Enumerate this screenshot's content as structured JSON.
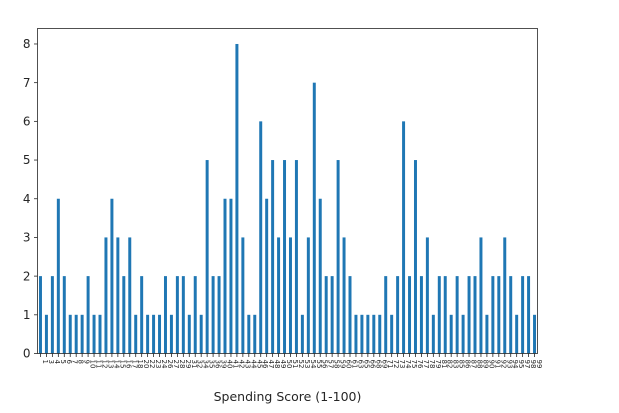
{
  "chart_data": {
    "type": "bar",
    "xlabel": "Spending Score (1-100)",
    "ylabel": "",
    "title": "",
    "ylim": [
      0,
      8.4
    ],
    "yticks": [
      0,
      1,
      2,
      3,
      4,
      5,
      6,
      7,
      8
    ],
    "bar_color": "#1f77b4",
    "grid": false,
    "categories": [
      "1",
      "3",
      "4",
      "5",
      "6",
      "7",
      "8",
      "9",
      "10",
      "11",
      "12",
      "13",
      "14",
      "15",
      "16",
      "17",
      "18",
      "20",
      "22",
      "23",
      "24",
      "26",
      "27",
      "28",
      "29",
      "31",
      "32",
      "34",
      "35",
      "36",
      "39",
      "40",
      "41",
      "42",
      "43",
      "44",
      "45",
      "46",
      "47",
      "48",
      "49",
      "50",
      "51",
      "52",
      "53",
      "54",
      "55",
      "56",
      "57",
      "58",
      "59",
      "60",
      "61",
      "63",
      "65",
      "66",
      "68",
      "69",
      "71",
      "72",
      "73",
      "74",
      "75",
      "76",
      "77",
      "78",
      "79",
      "81",
      "82",
      "83",
      "85",
      "86",
      "87",
      "88",
      "89",
      "90",
      "91",
      "92",
      "93",
      "94",
      "95",
      "97",
      "98",
      "99"
    ],
    "values": [
      2,
      1,
      2,
      4,
      2,
      1,
      1,
      1,
      2,
      1,
      1,
      3,
      4,
      3,
      2,
      3,
      1,
      2,
      1,
      1,
      1,
      2,
      1,
      2,
      2,
      1,
      2,
      1,
      5,
      2,
      2,
      4,
      4,
      8,
      3,
      1,
      1,
      6,
      4,
      5,
      3,
      5,
      3,
      5,
      1,
      3,
      7,
      4,
      2,
      2,
      5,
      3,
      2,
      1,
      1,
      1,
      1,
      1,
      2,
      1,
      2,
      6,
      2,
      5,
      2,
      3,
      1,
      2,
      2,
      1,
      2,
      1,
      2,
      2,
      3,
      1,
      2,
      2,
      3,
      2,
      1,
      2,
      2,
      1
    ]
  }
}
